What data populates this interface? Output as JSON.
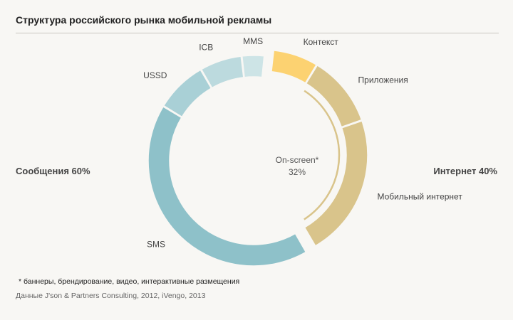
{
  "header": {
    "title": "Структура российского рынка мобильной рекламы"
  },
  "groups": {
    "left": "Сообщения 60%",
    "right": "Интернет 40%"
  },
  "chart_data": {
    "type": "pie",
    "variant": "donut",
    "title": "Структура российского рынка мобильной рекламы",
    "groups": [
      {
        "name": "Сообщения",
        "value": 60,
        "label": "Сообщения 60%"
      },
      {
        "name": "Интернет",
        "value": 40,
        "label": "Интернет 40%"
      }
    ],
    "slices": [
      {
        "name": "Контекст",
        "value": 7,
        "group": "Интернет",
        "color": "#fcd271"
      },
      {
        "name": "Приложения",
        "value": 11,
        "group": "Интернет",
        "color": "#d9c48b"
      },
      {
        "name": "Мобильный интернет",
        "value": 22,
        "group": "Интернет",
        "color": "#d9c48b"
      },
      {
        "name": "SMS",
        "value": 42,
        "group": "Сообщения",
        "color": "#8ec1c9"
      },
      {
        "name": "USSD",
        "value": 8,
        "group": "Сообщения",
        "color": "#a9d0d6"
      },
      {
        "name": "ICB",
        "value": 6.5,
        "group": "Сообщения",
        "color": "#bcdade"
      },
      {
        "name": "MMS",
        "value": 3.5,
        "group": "Сообщения",
        "color": "#cde4e6"
      }
    ],
    "annotation": {
      "label": "On-screen*",
      "value": "32%",
      "covers": [
        "Приложения",
        "Мобильный интернет"
      ]
    }
  },
  "footnote": "* баннеры, брендирование, видео, интерактивные размещения",
  "source": "Данные J'son & Partners Consulting, 2012, iVengo, 2013"
}
